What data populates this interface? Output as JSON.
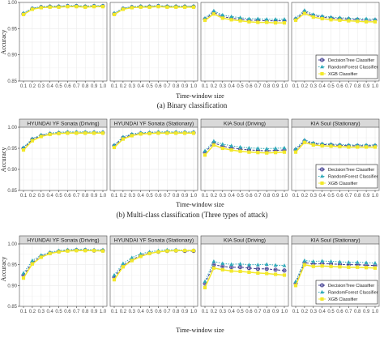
{
  "chart_data": [
    {
      "type": "line",
      "caption": "(a) Binary classification",
      "xlabel": "Time-window size",
      "ylabel": "Accuracy",
      "ylim": [
        0.85,
        1.0
      ],
      "yticks": [
        "0.85",
        "0.90",
        "0.95",
        "1.00"
      ],
      "x": [
        "0.1",
        "0.2",
        "0.3",
        "0.4",
        "0.5",
        "0.6",
        "0.7",
        "0.8",
        "0.9",
        "1.0"
      ],
      "legend_position": "bottom-right",
      "facets": [
        {
          "title": "",
          "series": [
            {
              "name": "DecisionTree Classifier",
              "values": [
                0.978,
                0.988,
                0.991,
                0.992,
                0.992,
                0.993,
                0.993,
                0.992,
                0.993,
                0.993
              ]
            },
            {
              "name": "RandomForest Classifier",
              "values": [
                0.98,
                0.989,
                0.992,
                0.993,
                0.993,
                0.994,
                0.994,
                0.993,
                0.994,
                0.994
              ]
            },
            {
              "name": "XGB Classifier",
              "values": [
                0.977,
                0.987,
                0.99,
                0.991,
                0.991,
                0.992,
                0.992,
                0.991,
                0.992,
                0.992
              ]
            }
          ]
        },
        {
          "title": "",
          "series": [
            {
              "name": "DecisionTree Classifier",
              "values": [
                0.978,
                0.988,
                0.991,
                0.992,
                0.992,
                0.993,
                0.992,
                0.992,
                0.992,
                0.992
              ]
            },
            {
              "name": "RandomForest Classifier",
              "values": [
                0.98,
                0.989,
                0.992,
                0.993,
                0.993,
                0.994,
                0.993,
                0.993,
                0.993,
                0.993
              ]
            },
            {
              "name": "XGB Classifier",
              "values": [
                0.977,
                0.987,
                0.99,
                0.991,
                0.991,
                0.992,
                0.991,
                0.991,
                0.991,
                0.991
              ]
            }
          ]
        },
        {
          "title": "",
          "series": [
            {
              "name": "DecisionTree Classifier",
              "values": [
                0.968,
                0.981,
                0.973,
                0.97,
                0.968,
                0.966,
                0.966,
                0.965,
                0.965,
                0.965
              ]
            },
            {
              "name": "RandomForest Classifier",
              "values": [
                0.97,
                0.984,
                0.976,
                0.973,
                0.971,
                0.969,
                0.969,
                0.968,
                0.968,
                0.968
              ]
            },
            {
              "name": "XGB Classifier",
              "values": [
                0.966,
                0.978,
                0.97,
                0.967,
                0.965,
                0.963,
                0.962,
                0.962,
                0.961,
                0.961
              ]
            }
          ]
        },
        {
          "title": "",
          "series": [
            {
              "name": "DecisionTree Classifier",
              "values": [
                0.968,
                0.982,
                0.975,
                0.972,
                0.97,
                0.969,
                0.968,
                0.967,
                0.966,
                0.966
              ]
            },
            {
              "name": "RandomForest Classifier",
              "values": [
                0.97,
                0.985,
                0.977,
                0.974,
                0.972,
                0.971,
                0.97,
                0.969,
                0.969,
                0.968
              ]
            },
            {
              "name": "XGB Classifier",
              "values": [
                0.966,
                0.979,
                0.972,
                0.969,
                0.967,
                0.966,
                0.965,
                0.964,
                0.963,
                0.963
              ]
            }
          ]
        }
      ]
    },
    {
      "type": "line",
      "caption": "(b) Multi-class classification (Three types of attack)",
      "xlabel": "Time-window size",
      "ylabel": "Accuracy",
      "ylim": [
        0.85,
        1.0
      ],
      "yticks": [
        "0.85",
        "0.90",
        "0.95",
        "1.00"
      ],
      "x": [
        "0.1",
        "0.2",
        "0.3",
        "0.4",
        "0.5",
        "0.6",
        "0.7",
        "0.8",
        "0.9",
        "1.0"
      ],
      "legend_position": "bottom-right",
      "facets": [
        {
          "title": "HYUNDAI YF Sonata (Driving)",
          "series": [
            {
              "name": "DecisionTree Classifier",
              "values": [
                0.95,
                0.971,
                0.98,
                0.984,
                0.986,
                0.987,
                0.987,
                0.987,
                0.987,
                0.987
              ]
            },
            {
              "name": "RandomForest Classifier",
              "values": [
                0.952,
                0.973,
                0.982,
                0.986,
                0.988,
                0.989,
                0.989,
                0.989,
                0.989,
                0.989
              ]
            },
            {
              "name": "XGB Classifier",
              "values": [
                0.946,
                0.968,
                0.978,
                0.983,
                0.985,
                0.986,
                0.986,
                0.986,
                0.986,
                0.986
              ]
            }
          ]
        },
        {
          "title": "HYUNDAI YF Sonata (Stationary)",
          "series": [
            {
              "name": "DecisionTree Classifier",
              "values": [
                0.956,
                0.975,
                0.982,
                0.985,
                0.986,
                0.987,
                0.987,
                0.987,
                0.987,
                0.987
              ]
            },
            {
              "name": "RandomForest Classifier",
              "values": [
                0.958,
                0.977,
                0.984,
                0.987,
                0.988,
                0.989,
                0.989,
                0.989,
                0.989,
                0.989
              ]
            },
            {
              "name": "XGB Classifier",
              "values": [
                0.952,
                0.972,
                0.98,
                0.984,
                0.985,
                0.986,
                0.986,
                0.986,
                0.986,
                0.986
              ]
            }
          ]
        },
        {
          "title": "KIA Soul (Driving)",
          "series": [
            {
              "name": "DecisionTree Classifier",
              "values": [
                0.94,
                0.963,
                0.955,
                0.951,
                0.948,
                0.946,
                0.945,
                0.944,
                0.945,
                0.946
              ]
            },
            {
              "name": "RandomForest Classifier",
              "values": [
                0.944,
                0.967,
                0.96,
                0.956,
                0.953,
                0.951,
                0.95,
                0.949,
                0.95,
                0.951
              ]
            },
            {
              "name": "XGB Classifier",
              "values": [
                0.934,
                0.958,
                0.95,
                0.946,
                0.943,
                0.941,
                0.94,
                0.939,
                0.94,
                0.941
              ]
            }
          ]
        },
        {
          "title": "KIA Soul (Stationary)",
          "series": [
            {
              "name": "DecisionTree Classifier",
              "values": [
                0.946,
                0.967,
                0.961,
                0.959,
                0.958,
                0.957,
                0.956,
                0.956,
                0.956,
                0.956
              ]
            },
            {
              "name": "RandomForest Classifier",
              "values": [
                0.949,
                0.97,
                0.963,
                0.961,
                0.96,
                0.959,
                0.958,
                0.958,
                0.958,
                0.958
              ]
            },
            {
              "name": "XGB Classifier",
              "values": [
                0.941,
                0.964,
                0.958,
                0.956,
                0.955,
                0.954,
                0.953,
                0.953,
                0.953,
                0.953
              ]
            }
          ]
        }
      ]
    },
    {
      "type": "line",
      "caption": "",
      "xlabel": "Time-window size",
      "ylabel": "Accuracy",
      "ylim": [
        0.85,
        1.0
      ],
      "yticks": [
        "0.85",
        "0.90",
        "0.95",
        "1.00"
      ],
      "x": [
        "0.1",
        "0.2",
        "0.3",
        "0.4",
        "0.5",
        "0.6",
        "0.7",
        "0.8",
        "0.9",
        "1.0"
      ],
      "legend_position": "bottom-right",
      "facets": [
        {
          "title": "HYUNDAI YF Sonata (Driving)",
          "series": [
            {
              "name": "DecisionTree Classifier",
              "values": [
                0.925,
                0.955,
                0.97,
                0.978,
                0.982,
                0.984,
                0.985,
                0.985,
                0.984,
                0.984
              ]
            },
            {
              "name": "RandomForest Classifier",
              "values": [
                0.93,
                0.96,
                0.973,
                0.98,
                0.984,
                0.986,
                0.987,
                0.987,
                0.986,
                0.986
              ]
            },
            {
              "name": "XGB Classifier",
              "values": [
                0.918,
                0.952,
                0.968,
                0.977,
                0.981,
                0.983,
                0.984,
                0.984,
                0.984,
                0.983
              ]
            }
          ]
        },
        {
          "title": "HYUNDAI YF Sonata (Stationary)",
          "series": [
            {
              "name": "DecisionTree Classifier",
              "values": [
                0.92,
                0.948,
                0.962,
                0.972,
                0.978,
                0.981,
                0.983,
                0.984,
                0.983,
                0.983
              ]
            },
            {
              "name": "RandomForest Classifier",
              "values": [
                0.925,
                0.953,
                0.967,
                0.976,
                0.981,
                0.984,
                0.986,
                0.986,
                0.985,
                0.985
              ]
            },
            {
              "name": "XGB Classifier",
              "values": [
                0.914,
                0.945,
                0.96,
                0.97,
                0.977,
                0.981,
                0.983,
                0.984,
                0.984,
                0.984
              ]
            }
          ]
        },
        {
          "title": "KIA Soul (Driving)",
          "series": [
            {
              "name": "DecisionTree Classifier",
              "values": [
                0.905,
                0.95,
                0.946,
                0.944,
                0.944,
                0.942,
                0.94,
                0.94,
                0.938,
                0.936
              ]
            },
            {
              "name": "RandomForest Classifier",
              "values": [
                0.91,
                0.958,
                0.953,
                0.951,
                0.952,
                0.95,
                0.95,
                0.951,
                0.949,
                0.948
              ]
            },
            {
              "name": "XGB Classifier",
              "values": [
                0.895,
                0.942,
                0.938,
                0.935,
                0.934,
                0.932,
                0.93,
                0.929,
                0.927,
                0.925
              ]
            }
          ]
        },
        {
          "title": "KIA Soul (Stationary)",
          "series": [
            {
              "name": "DecisionTree Classifier",
              "values": [
                0.905,
                0.955,
                0.952,
                0.953,
                0.952,
                0.951,
                0.95,
                0.95,
                0.949,
                0.948
              ]
            },
            {
              "name": "RandomForest Classifier",
              "values": [
                0.91,
                0.96,
                0.958,
                0.959,
                0.958,
                0.957,
                0.956,
                0.956,
                0.955,
                0.954
              ]
            },
            {
              "name": "XGB Classifier",
              "values": [
                0.9,
                0.95,
                0.946,
                0.947,
                0.946,
                0.945,
                0.944,
                0.944,
                0.943,
                0.942
              ]
            }
          ]
        }
      ]
    }
  ],
  "legend": {
    "items": [
      {
        "label": "DecisionTree Classifier",
        "color": "#3f3b8f",
        "marker": "circle-plus"
      },
      {
        "label": "RandomForest Classifier",
        "color": "#2fa9b8",
        "marker": "triangle"
      },
      {
        "label": "XGB Classifier",
        "color": "#f2e82a",
        "marker": "square"
      }
    ]
  },
  "colors": {
    "panel_background": "#ffffff",
    "strip_background": "#d9d9d9",
    "grid": "#ebebeb",
    "panel_border": "#4d4d4d"
  }
}
